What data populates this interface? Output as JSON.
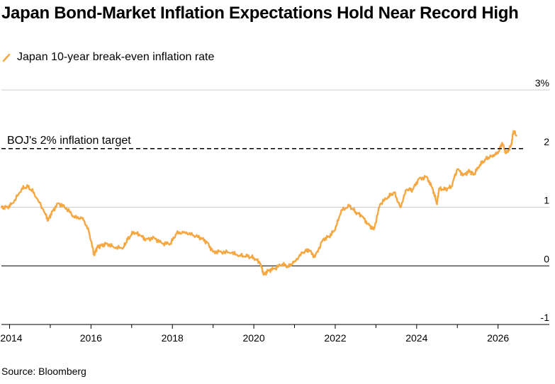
{
  "chart_data": {
    "type": "line",
    "title": "Japan Bond-Market Inflation Expectations Hold Near Record High",
    "xlabel": "",
    "ylabel": "",
    "xlim": [
      2013.8,
      2026.65
    ],
    "ylim": [
      -1,
      3
    ],
    "x_ticks": [
      2014,
      2016,
      2018,
      2020,
      2022,
      2024,
      2026
    ],
    "x_tick_labels": [
      "2014",
      "2016",
      "2018",
      "2020",
      "2022",
      "2024",
      "2026"
    ],
    "y_ticks": [
      -1,
      0,
      1,
      2,
      3
    ],
    "y_tick_labels": [
      "-1",
      "0",
      "1",
      "2",
      "3%"
    ],
    "grid": "horizontal",
    "legend_position": "top-left",
    "series": [
      {
        "name": "Japan 10-year break-even inflation rate",
        "color": "#f5a742",
        "x": [
          2013.8,
          2013.95,
          2014.1,
          2014.3,
          2014.45,
          2014.6,
          2014.85,
          2014.95,
          2015.05,
          2015.2,
          2015.4,
          2015.6,
          2015.8,
          2015.95,
          2016.08,
          2016.15,
          2016.25,
          2016.4,
          2016.6,
          2016.8,
          2016.9,
          2017.05,
          2017.2,
          2017.35,
          2017.55,
          2017.75,
          2017.95,
          2018.1,
          2018.3,
          2018.5,
          2018.7,
          2018.85,
          2019.0,
          2019.2,
          2019.45,
          2019.65,
          2019.85,
          2020.0,
          2020.15,
          2020.25,
          2020.35,
          2020.5,
          2020.7,
          2020.85,
          2021.0,
          2021.2,
          2021.35,
          2021.5,
          2021.7,
          2021.85,
          2022.0,
          2022.15,
          2022.35,
          2022.5,
          2022.65,
          2022.8,
          2022.95,
          2023.1,
          2023.3,
          2023.45,
          2023.6,
          2023.75,
          2023.9,
          2024.05,
          2024.25,
          2024.4,
          2024.5,
          2024.55,
          2024.7,
          2024.85,
          2025.0,
          2025.15,
          2025.3,
          2025.4,
          2025.55,
          2025.7,
          2025.85,
          2026.0,
          2026.1,
          2026.2,
          2026.32,
          2026.38,
          2026.45
        ],
        "values": [
          1.0,
          1.0,
          1.08,
          1.32,
          1.35,
          1.25,
          0.92,
          0.78,
          0.93,
          1.07,
          0.98,
          0.82,
          0.82,
          0.58,
          0.18,
          0.32,
          0.35,
          0.38,
          0.3,
          0.32,
          0.45,
          0.58,
          0.52,
          0.45,
          0.48,
          0.38,
          0.38,
          0.55,
          0.58,
          0.52,
          0.48,
          0.4,
          0.24,
          0.24,
          0.22,
          0.18,
          0.16,
          0.14,
          0.05,
          -0.15,
          -0.08,
          -0.05,
          0.03,
          -0.02,
          0.08,
          0.22,
          0.28,
          0.15,
          0.45,
          0.5,
          0.62,
          0.95,
          1.02,
          0.92,
          0.85,
          0.72,
          0.62,
          1.05,
          1.18,
          1.25,
          1.0,
          1.3,
          1.3,
          1.48,
          1.52,
          1.3,
          1.05,
          1.32,
          1.3,
          1.35,
          1.65,
          1.55,
          1.62,
          1.55,
          1.72,
          1.82,
          1.88,
          1.92,
          2.1,
          1.92,
          2.05,
          2.3,
          2.22
        ]
      }
    ],
    "annotations": [
      {
        "text": "BOJ's 2% inflation target",
        "y": 2
      }
    ]
  },
  "legend": {
    "label": "Japan 10-year break-even inflation rate",
    "icon": "orange-line-icon"
  },
  "source": "Source: Bloomberg"
}
